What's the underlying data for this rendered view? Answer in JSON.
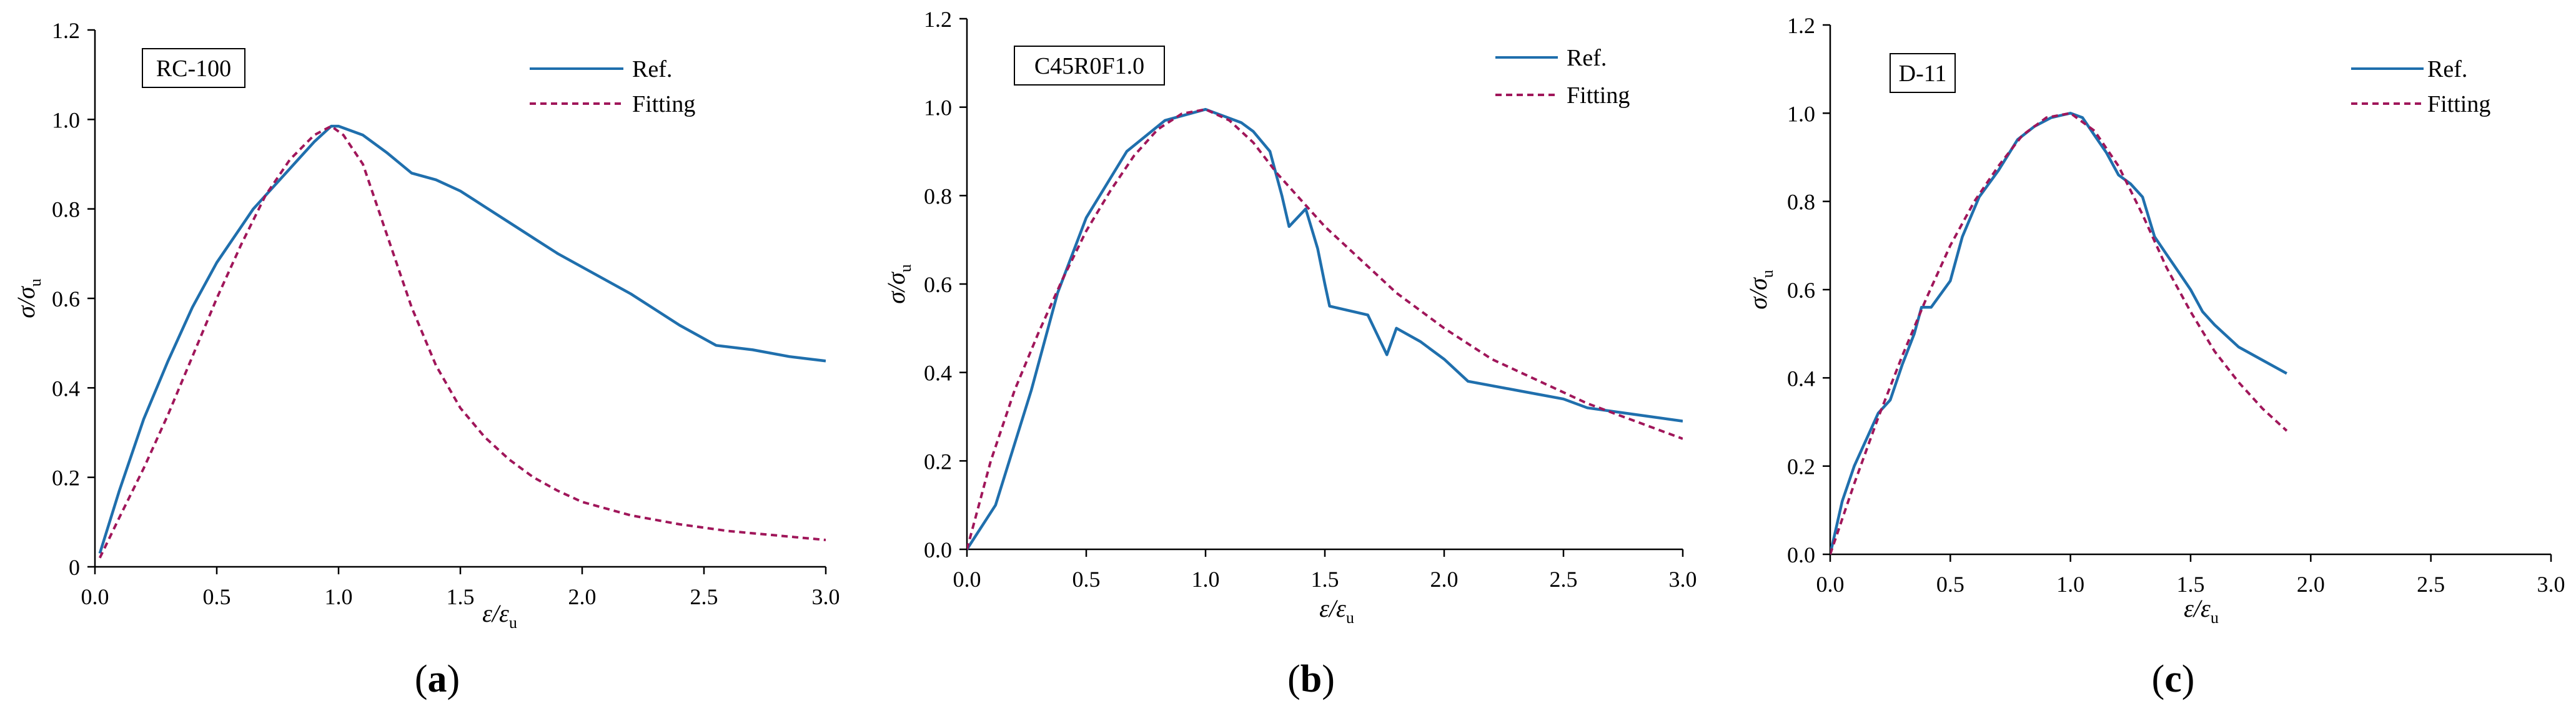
{
  "chart_data": [
    {
      "type": "line",
      "panel_letter": "a",
      "panel_label": "(a)",
      "name_box": "RC-100",
      "xlabel": {
        "main": "ε/ε",
        "sub": "u"
      },
      "ylabel": {
        "main": "σ/σ",
        "sub": "u"
      },
      "xlim": [
        0,
        3.0
      ],
      "ylim": [
        0,
        1.2
      ],
      "xticks": [
        "0.0",
        "0.5",
        "1.0",
        "1.5",
        "2.0",
        "2.5",
        "3.0"
      ],
      "yticks": [
        "0",
        "0.2",
        "0.4",
        "0.6",
        "0.8",
        "1.0",
        "1.2"
      ],
      "legend_position": "top-right",
      "series": [
        {
          "name": "Ref.",
          "style": "solid",
          "color": "#1f6fad",
          "x": [
            0.02,
            0.1,
            0.2,
            0.3,
            0.4,
            0.5,
            0.65,
            0.8,
            0.9,
            0.97,
            1.0,
            1.1,
            1.2,
            1.3,
            1.4,
            1.5,
            1.6,
            1.7,
            1.8,
            1.9,
            2.0,
            2.1,
            2.2,
            2.3,
            2.4,
            2.55,
            2.7,
            2.85,
            3.0
          ],
          "y": [
            0.03,
            0.17,
            0.33,
            0.46,
            0.58,
            0.68,
            0.8,
            0.89,
            0.95,
            0.985,
            0.985,
            0.965,
            0.925,
            0.88,
            0.865,
            0.84,
            0.805,
            0.77,
            0.735,
            0.7,
            0.67,
            0.64,
            0.61,
            0.575,
            0.54,
            0.495,
            0.485,
            0.47,
            0.46
          ]
        },
        {
          "name": "Fitting",
          "style": "dashed",
          "color": "#a0165a",
          "x": [
            0.02,
            0.1,
            0.2,
            0.3,
            0.4,
            0.5,
            0.6,
            0.7,
            0.8,
            0.9,
            0.97,
            1.02,
            1.1,
            1.2,
            1.3,
            1.4,
            1.5,
            1.6,
            1.7,
            1.8,
            1.9,
            2.0,
            2.2,
            2.4,
            2.6,
            2.8,
            3.0
          ],
          "y": [
            0.02,
            0.11,
            0.22,
            0.34,
            0.47,
            0.6,
            0.72,
            0.83,
            0.91,
            0.965,
            0.985,
            0.965,
            0.9,
            0.74,
            0.58,
            0.45,
            0.355,
            0.29,
            0.24,
            0.2,
            0.17,
            0.145,
            0.115,
            0.095,
            0.08,
            0.07,
            0.06
          ]
        }
      ]
    },
    {
      "type": "line",
      "panel_letter": "b",
      "panel_label": "(b)",
      "name_box": "C45R0F1.0",
      "xlabel": {
        "main": "ε/ε",
        "sub": "u"
      },
      "ylabel": {
        "main": "σ/σ",
        "sub": "u"
      },
      "xlim": [
        0,
        3.0
      ],
      "ylim": [
        0,
        1.2
      ],
      "xticks": [
        "0.0",
        "0.5",
        "1.0",
        "1.5",
        "2.0",
        "2.5",
        "3.0"
      ],
      "yticks": [
        "0.0",
        "0.2",
        "0.4",
        "0.6",
        "0.8",
        "1.0",
        "1.2"
      ],
      "legend_position": "top-right",
      "series": [
        {
          "name": "Ref.",
          "style": "solid",
          "color": "#1f6fad",
          "x": [
            0.0,
            0.12,
            0.27,
            0.38,
            0.5,
            0.67,
            0.83,
            1.0,
            1.15,
            1.2,
            1.27,
            1.32,
            1.35,
            1.42,
            1.47,
            1.5,
            1.52,
            1.68,
            1.76,
            1.8,
            1.9,
            2.0,
            2.1,
            2.3,
            2.5,
            2.6,
            2.8,
            3.0
          ],
          "y": [
            0.0,
            0.1,
            0.36,
            0.58,
            0.75,
            0.9,
            0.97,
            0.995,
            0.965,
            0.945,
            0.9,
            0.8,
            0.73,
            0.77,
            0.68,
            0.6,
            0.55,
            0.53,
            0.44,
            0.5,
            0.47,
            0.43,
            0.38,
            0.36,
            0.34,
            0.32,
            0.305,
            0.29
          ]
        },
        {
          "name": "Fitting",
          "style": "dashed",
          "color": "#a0165a",
          "x": [
            0.0,
            0.1,
            0.2,
            0.3,
            0.4,
            0.5,
            0.6,
            0.7,
            0.8,
            0.9,
            1.0,
            1.1,
            1.2,
            1.3,
            1.4,
            1.5,
            1.6,
            1.8,
            2.0,
            2.2,
            2.4,
            2.6,
            2.8,
            3.0
          ],
          "y": [
            0.0,
            0.2,
            0.36,
            0.49,
            0.61,
            0.72,
            0.81,
            0.89,
            0.95,
            0.985,
            0.995,
            0.97,
            0.92,
            0.85,
            0.79,
            0.73,
            0.68,
            0.58,
            0.5,
            0.43,
            0.38,
            0.33,
            0.29,
            0.25
          ]
        }
      ]
    },
    {
      "type": "line",
      "panel_letter": "c",
      "panel_label": "(c)",
      "name_box": "D-11",
      "xlabel": {
        "main": "ε/ε",
        "sub": "u"
      },
      "ylabel": {
        "main": "σ/σ",
        "sub": "u"
      },
      "xlim": [
        0,
        3.0
      ],
      "ylim": [
        0,
        1.2
      ],
      "xticks": [
        "0.0",
        "0.5",
        "1.0",
        "1.5",
        "2.0",
        "2.5",
        "3.0"
      ],
      "yticks": [
        "0.0",
        "0.2",
        "0.4",
        "0.6",
        "0.8",
        "1.0",
        "1.2"
      ],
      "legend_position": "top-right",
      "series": [
        {
          "name": "Ref.",
          "style": "solid",
          "color": "#1f6fad",
          "x": [
            0.0,
            0.05,
            0.1,
            0.15,
            0.2,
            0.25,
            0.3,
            0.35,
            0.38,
            0.42,
            0.5,
            0.55,
            0.62,
            0.7,
            0.78,
            0.85,
            0.92,
            1.0,
            1.05,
            1.1,
            1.15,
            1.2,
            1.25,
            1.3,
            1.35,
            1.4,
            1.45,
            1.5,
            1.55,
            1.6,
            1.7,
            1.8,
            1.9
          ],
          "y": [
            0.0,
            0.12,
            0.2,
            0.26,
            0.32,
            0.35,
            0.43,
            0.5,
            0.56,
            0.56,
            0.62,
            0.72,
            0.81,
            0.87,
            0.94,
            0.97,
            0.99,
            1.0,
            0.99,
            0.95,
            0.91,
            0.86,
            0.84,
            0.81,
            0.72,
            0.68,
            0.64,
            0.6,
            0.55,
            0.52,
            0.47,
            0.44,
            0.41
          ]
        },
        {
          "name": "Fitting",
          "style": "dashed",
          "color": "#a0165a",
          "x": [
            0.0,
            0.1,
            0.2,
            0.3,
            0.4,
            0.5,
            0.6,
            0.7,
            0.8,
            0.9,
            1.0,
            1.1,
            1.2,
            1.3,
            1.4,
            1.5,
            1.6,
            1.7,
            1.8,
            1.9
          ],
          "y": [
            0.0,
            0.16,
            0.31,
            0.45,
            0.58,
            0.7,
            0.8,
            0.88,
            0.95,
            0.99,
            1.0,
            0.96,
            0.88,
            0.77,
            0.65,
            0.55,
            0.46,
            0.39,
            0.33,
            0.28
          ]
        }
      ]
    }
  ]
}
